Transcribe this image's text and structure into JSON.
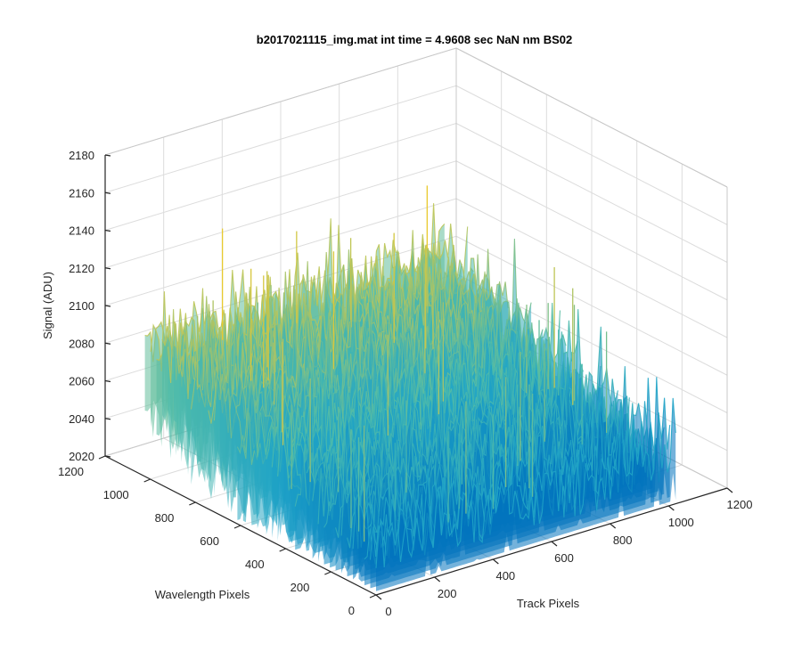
{
  "chart_data": {
    "type": "surface",
    "title": "b2017021115_img.mat int time = 4.9608 sec  NaN nm BS02",
    "xlabel": "Track Pixels",
    "ylabel": "Wavelength Pixels",
    "zlabel": "Signal (ADU)",
    "xlim": [
      0,
      1200
    ],
    "ylim": [
      0,
      1200
    ],
    "zlim": [
      2020,
      2180
    ],
    "xticks": [
      "0",
      "200",
      "400",
      "600",
      "800",
      "1000",
      "1200"
    ],
    "yticks": [
      "0",
      "200",
      "400",
      "600",
      "800",
      "1000",
      "1200"
    ],
    "zticks": [
      "2020",
      "2040",
      "2060",
      "2080",
      "2100",
      "2120",
      "2140",
      "2160",
      "2180"
    ],
    "grid": true,
    "colormap": [
      "#0072bd",
      "#1fa3c7",
      "#4fbbaa",
      "#b4c45e",
      "#eac92c"
    ],
    "data_extent": {
      "x": [
        0,
        1024
      ],
      "y": [
        0,
        1024
      ]
    },
    "signal_profile": {
      "base_level": 2060,
      "high_wavelength_edge_level": 2090,
      "low_wavelength_edge_level": 2045,
      "noise_amplitude": 20,
      "peak_max": 2150
    }
  }
}
